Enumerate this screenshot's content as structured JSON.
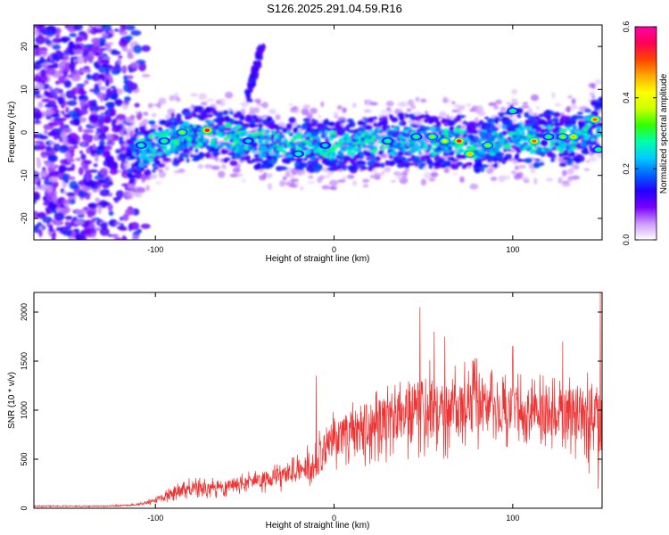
{
  "title": "S126.2025.291.04.59.R16",
  "chart_data": [
    {
      "type": "heatmap",
      "title": "S126.2025.291.04.59.R16",
      "xlabel": "Height of straight line (km)",
      "ylabel": "Frequency (Hz)",
      "xlim": [
        -168,
        150
      ],
      "ylim": [
        -25,
        25
      ],
      "xticks": [
        -100,
        0,
        100
      ],
      "yticks": [
        -20,
        -10,
        0,
        10,
        20
      ],
      "xtick_labels": [
        "-100",
        "0",
        "100"
      ],
      "ytick_labels": [
        "-20",
        "-10",
        "0",
        "10",
        "20"
      ],
      "colorbar": {
        "label": "Normalized spectral amplitude",
        "range": [
          0.0,
          0.6
        ],
        "ticks": [
          0.0,
          0.2,
          0.4,
          0.6
        ],
        "tick_labels": [
          "0.0",
          "0.2",
          "0.4",
          "0.6"
        ],
        "colors": [
          "#ffffff",
          "#cc99ff",
          "#7700ff",
          "#2200ff",
          "#0066ff",
          "#00ccff",
          "#00ffaa",
          "#33ff00",
          "#ccff00",
          "#ffff00",
          "#ffaa00",
          "#ff4400",
          "#ff0055",
          "#ff00aa"
        ]
      },
      "description_points": {
        "ridge_center_hz": [
          [
            -115,
            -6
          ],
          [
            -100,
            -3
          ],
          [
            -85,
            -1
          ],
          [
            -70,
            0
          ],
          [
            -50,
            -2
          ],
          [
            -30,
            -3
          ],
          [
            -10,
            -3
          ],
          [
            10,
            -3
          ],
          [
            30,
            -2
          ],
          [
            50,
            -2
          ],
          [
            60,
            -2
          ],
          [
            70,
            -2
          ],
          [
            80,
            -3
          ],
          [
            90,
            -2
          ],
          [
            100,
            0
          ],
          [
            110,
            -2
          ],
          [
            120,
            -1
          ],
          [
            130,
            -2
          ],
          [
            140,
            0
          ],
          [
            148,
            2
          ]
        ],
        "hotspots": [
          [
            -71,
            0.5,
            0.55
          ],
          [
            -85,
            0,
            0.35
          ],
          [
            -95,
            -2,
            0.3
          ],
          [
            -108,
            -3,
            0.28
          ],
          [
            -48,
            -2,
            0.25
          ],
          [
            -20,
            -5,
            0.28
          ],
          [
            -5,
            -3,
            0.25
          ],
          [
            30,
            -2,
            0.3
          ],
          [
            46,
            -1,
            0.3
          ],
          [
            55,
            -1,
            0.35
          ],
          [
            62,
            -2,
            0.4
          ],
          [
            70,
            -2,
            0.55
          ],
          [
            76,
            -5,
            0.45
          ],
          [
            86,
            -3,
            0.35
          ],
          [
            100,
            5,
            0.3
          ],
          [
            112,
            -2,
            0.5
          ],
          [
            120,
            -1,
            0.3
          ],
          [
            128,
            -1,
            0.35
          ],
          [
            134,
            -1,
            0.45
          ],
          [
            146,
            3,
            0.5
          ],
          [
            148,
            -4,
            0.3
          ]
        ],
        "left_noise_region_km": [
          -168,
          -112
        ],
        "upper_streak": [
          [
            -48,
            8
          ],
          [
            -45,
            13
          ],
          [
            -42,
            18
          ],
          [
            -40,
            20
          ]
        ]
      }
    },
    {
      "type": "line",
      "xlabel": "Height of straight line (km)",
      "ylabel": "SNR (10 * v/v)",
      "xlim": [
        -168,
        150
      ],
      "ylim": [
        0,
        2200
      ],
      "xticks": [
        -100,
        0,
        100
      ],
      "yticks": [
        0,
        500,
        1000,
        1500,
        2000
      ],
      "xtick_labels": [
        "-100",
        "0",
        "100"
      ],
      "ytick_labels": [
        "0",
        "500",
        "1000",
        "1500",
        "2000"
      ],
      "color": "#ee3333",
      "envelope": {
        "x": [
          -168,
          -130,
          -110,
          -100,
          -90,
          -80,
          -60,
          -40,
          -20,
          -10,
          0,
          10,
          20,
          30,
          40,
          50,
          60,
          70,
          80,
          90,
          100,
          110,
          120,
          130,
          140,
          145,
          150
        ],
        "mean": [
          20,
          20,
          35,
          80,
          160,
          200,
          220,
          280,
          380,
          470,
          700,
          780,
          850,
          900,
          980,
          1020,
          1000,
          1030,
          1050,
          1000,
          1020,
          1000,
          950,
          980,
          930,
          900,
          850
        ],
        "amplitude": [
          8,
          8,
          15,
          40,
          90,
          120,
          110,
          140,
          200,
          280,
          350,
          380,
          420,
          450,
          500,
          560,
          520,
          500,
          500,
          450,
          450,
          400,
          400,
          450,
          550,
          700,
          700
        ]
      },
      "peaks": [
        [
          -10,
          1350
        ],
        [
          48,
          2050
        ],
        [
          56,
          1800
        ],
        [
          62,
          1750
        ],
        [
          100,
          1650
        ],
        [
          128,
          1700
        ],
        [
          149,
          2200
        ]
      ]
    }
  ]
}
